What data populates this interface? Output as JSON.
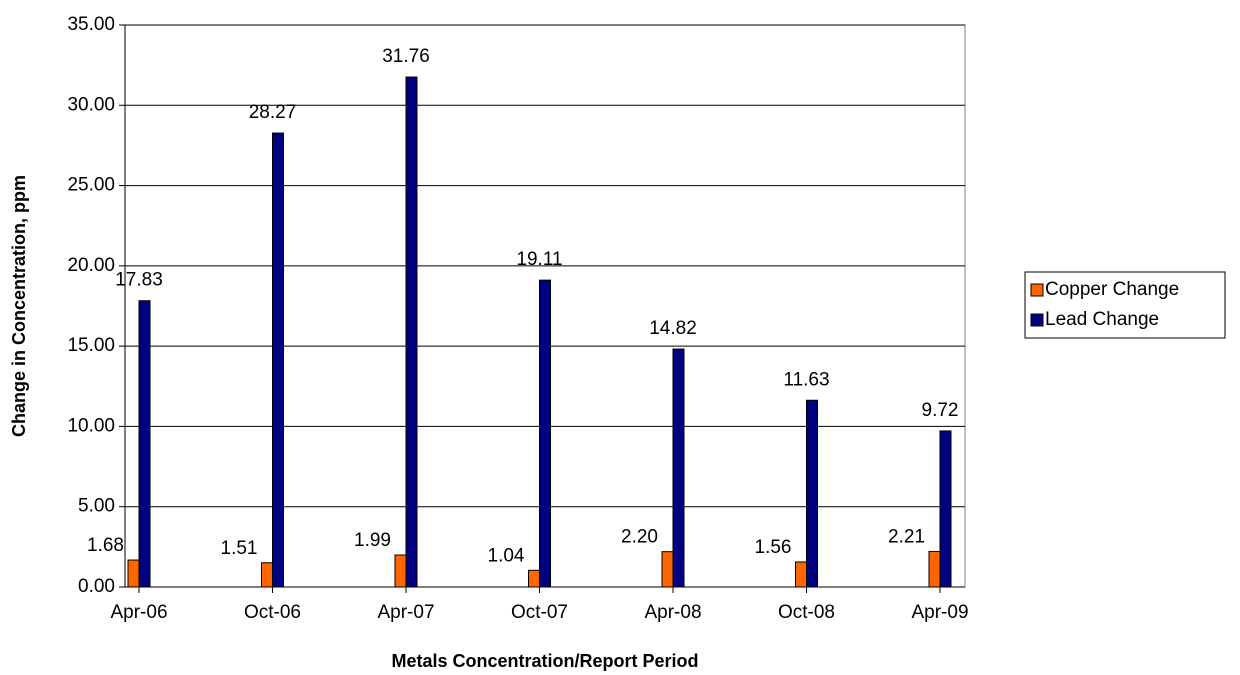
{
  "chart_data": {
    "type": "bar",
    "x_label": "Metals Concentration/Report Period",
    "y_label": "Change in Concentration, ppm",
    "categories": [
      "Apr-06",
      "Oct-06",
      "Apr-07",
      "Oct-07",
      "Apr-08",
      "Oct-08",
      "Apr-09"
    ],
    "series": [
      {
        "name": "Copper Change",
        "color": "#ff6600",
        "values": [
          1.68,
          1.51,
          1.99,
          1.04,
          2.2,
          1.56,
          2.21
        ],
        "value_labels": [
          "1.68",
          "1.51",
          "1.99",
          "1.04",
          "2.20",
          "1.56",
          "2.21"
        ]
      },
      {
        "name": "Lead Change",
        "color": "#000080",
        "values": [
          17.83,
          28.27,
          31.76,
          19.11,
          14.82,
          11.63,
          9.72
        ],
        "value_labels": [
          "17.83",
          "28.27",
          "31.76",
          "19.11",
          "14.82",
          "11.63",
          "9.72"
        ]
      }
    ],
    "ylim": [
      0,
      35
    ],
    "yticks": [
      {
        "value": 0,
        "label": "0.00"
      },
      {
        "value": 5,
        "label": "5.00"
      },
      {
        "value": 10,
        "label": "10.00"
      },
      {
        "value": 15,
        "label": "15.00"
      },
      {
        "value": 20,
        "label": "20.00"
      },
      {
        "value": 25,
        "label": "25.00"
      },
      {
        "value": 30,
        "label": "30.00"
      },
      {
        "value": 35,
        "label": "35.00"
      }
    ],
    "grid": true,
    "legend": "right"
  }
}
